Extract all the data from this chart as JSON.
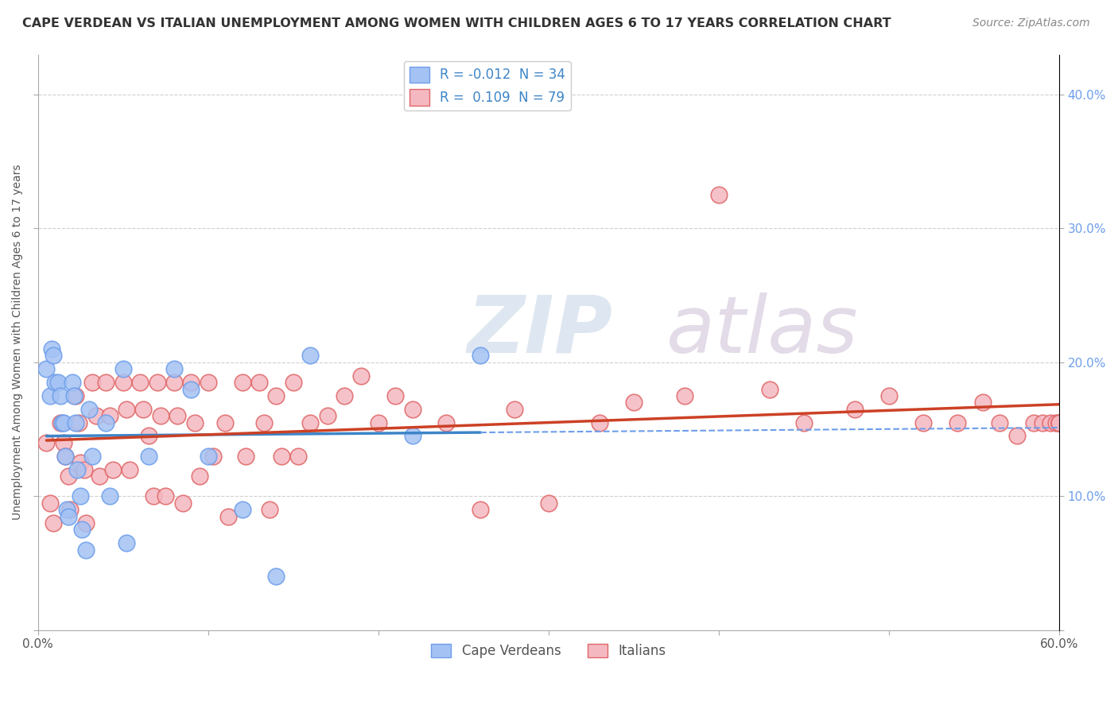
{
  "title": "CAPE VERDEAN VS ITALIAN UNEMPLOYMENT AMONG WOMEN WITH CHILDREN AGES 6 TO 17 YEARS CORRELATION CHART",
  "source": "Source: ZipAtlas.com",
  "ylabel": "Unemployment Among Women with Children Ages 6 to 17 years",
  "xlim": [
    0.0,
    0.6
  ],
  "ylim": [
    0.0,
    0.43
  ],
  "xticks": [
    0.0,
    0.1,
    0.2,
    0.3,
    0.4,
    0.5,
    0.6
  ],
  "xticklabels": [
    "0.0%",
    "",
    "",
    "",
    "",
    "",
    "60.0%"
  ],
  "yticks_right": [
    0.1,
    0.2,
    0.3,
    0.4
  ],
  "yticklabels_right": [
    "10.0%",
    "20.0%",
    "30.0%",
    "40.0%"
  ],
  "legend_blue_label": "R = -0.012  N = 34",
  "legend_pink_label": "R =  0.109  N = 79",
  "legend_label_cape": "Cape Verdeans",
  "legend_label_italian": "Italians",
  "blue_color": "#a4c2f4",
  "pink_color": "#f4b8c1",
  "blue_edge_color": "#6d9eeb",
  "pink_edge_color": "#e06666",
  "blue_line_color": "#3d85c8",
  "pink_line_color": "#cc4125",
  "blue_dash_color": "#6d9eeb",
  "pink_dash_color": "#e06666",
  "watermark_zip": "ZIP",
  "watermark_atlas": "atlas",
  "background_color": "#ffffff",
  "grid_color": "#d0d0d0",
  "blue_x": [
    0.005,
    0.007,
    0.008,
    0.009,
    0.01,
    0.012,
    0.013,
    0.014,
    0.015,
    0.016,
    0.017,
    0.018,
    0.02,
    0.021,
    0.022,
    0.023,
    0.025,
    0.026,
    0.028,
    0.03,
    0.032,
    0.04,
    0.042,
    0.05,
    0.052,
    0.065,
    0.08,
    0.09,
    0.1,
    0.12,
    0.14,
    0.16,
    0.22,
    0.26
  ],
  "blue_y": [
    0.195,
    0.175,
    0.21,
    0.205,
    0.185,
    0.185,
    0.175,
    0.155,
    0.155,
    0.13,
    0.09,
    0.085,
    0.185,
    0.175,
    0.155,
    0.12,
    0.1,
    0.075,
    0.06,
    0.165,
    0.13,
    0.155,
    0.1,
    0.195,
    0.065,
    0.13,
    0.195,
    0.18,
    0.13,
    0.09,
    0.04,
    0.205,
    0.145,
    0.205
  ],
  "pink_x": [
    0.005,
    0.007,
    0.009,
    0.013,
    0.015,
    0.016,
    0.018,
    0.019,
    0.022,
    0.024,
    0.025,
    0.027,
    0.028,
    0.032,
    0.034,
    0.036,
    0.04,
    0.042,
    0.044,
    0.05,
    0.052,
    0.054,
    0.06,
    0.062,
    0.065,
    0.068,
    0.07,
    0.072,
    0.075,
    0.08,
    0.082,
    0.085,
    0.09,
    0.092,
    0.095,
    0.1,
    0.103,
    0.11,
    0.112,
    0.12,
    0.122,
    0.13,
    0.133,
    0.136,
    0.14,
    0.143,
    0.15,
    0.153,
    0.16,
    0.17,
    0.18,
    0.19,
    0.2,
    0.21,
    0.22,
    0.24,
    0.26,
    0.28,
    0.3,
    0.33,
    0.35,
    0.38,
    0.4,
    0.43,
    0.45,
    0.48,
    0.5,
    0.52,
    0.54,
    0.555,
    0.565,
    0.575,
    0.585,
    0.59,
    0.595,
    0.598,
    0.6,
    0.6,
    0.6
  ],
  "pink_y": [
    0.14,
    0.095,
    0.08,
    0.155,
    0.14,
    0.13,
    0.115,
    0.09,
    0.175,
    0.155,
    0.125,
    0.12,
    0.08,
    0.185,
    0.16,
    0.115,
    0.185,
    0.16,
    0.12,
    0.185,
    0.165,
    0.12,
    0.185,
    0.165,
    0.145,
    0.1,
    0.185,
    0.16,
    0.1,
    0.185,
    0.16,
    0.095,
    0.185,
    0.155,
    0.115,
    0.185,
    0.13,
    0.155,
    0.085,
    0.185,
    0.13,
    0.185,
    0.155,
    0.09,
    0.175,
    0.13,
    0.185,
    0.13,
    0.155,
    0.16,
    0.175,
    0.19,
    0.155,
    0.175,
    0.165,
    0.155,
    0.09,
    0.165,
    0.095,
    0.155,
    0.17,
    0.175,
    0.325,
    0.18,
    0.155,
    0.165,
    0.175,
    0.155,
    0.155,
    0.17,
    0.155,
    0.145,
    0.155,
    0.155,
    0.155,
    0.155,
    0.155,
    0.155,
    0.155
  ]
}
